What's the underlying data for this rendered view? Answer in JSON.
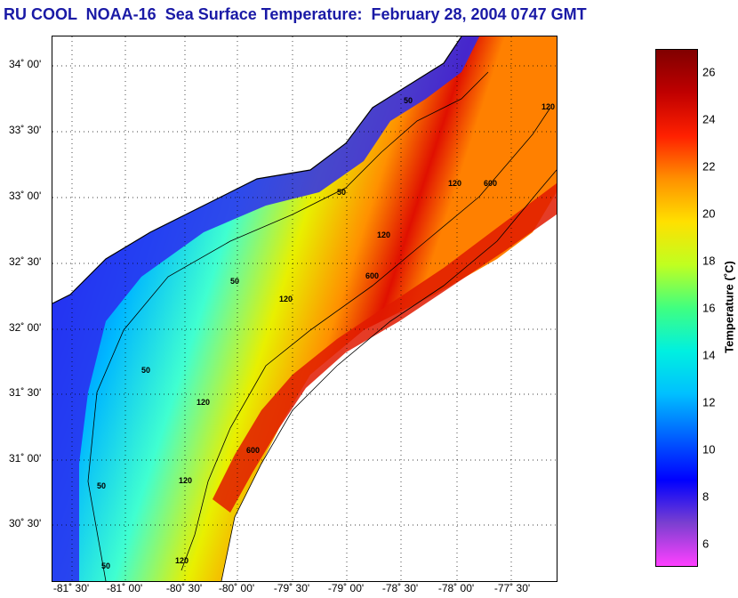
{
  "title": "RU COOL  NOAA-16  Sea Surface Temperature:  February 28, 2004 0747 GMT",
  "map": {
    "latitude_labels": [
      "34˚ 00'",
      "33˚ 30'",
      "33˚ 00'",
      "32˚ 30'",
      "32˚ 00'",
      "31˚ 30'",
      "31˚ 00'",
      "30˚ 30'"
    ],
    "longitude_labels": [
      "-81˚ 30'",
      "-81˚ 00'",
      "-80˚ 30'",
      "-80˚ 00'",
      "-79˚ 30'",
      "-79˚ 00'",
      "-78˚ 30'",
      "-78˚ 00'",
      "-77˚ 30'"
    ],
    "grid": "dotted",
    "contour_labels": [
      "50",
      "50",
      "50",
      "50",
      "50",
      "50",
      "120",
      "120",
      "120",
      "120",
      "120",
      "120",
      "120",
      "600",
      "600",
      "600"
    ],
    "colors": {
      "land": "#ffffff",
      "coast": "#000000",
      "cold": "#1a1aff",
      "cool": "#00c8ff",
      "mild": "#f0f000",
      "warm": "#ff8c00",
      "hot": "#e01000"
    }
  },
  "colorbar": {
    "label": "Temperature (˚C)",
    "ticks": [
      "26",
      "24",
      "22",
      "20",
      "18",
      "16",
      "14",
      "12",
      "10",
      "8",
      "6"
    ],
    "tick_values": [
      26,
      24,
      22,
      20,
      18,
      16,
      14,
      12,
      10,
      8,
      6
    ],
    "range": [
      5,
      27
    ],
    "colors": [
      "#ff40ff",
      "#7a3fd0",
      "#0000ff",
      "#0060ff",
      "#00c0ff",
      "#00f0e0",
      "#40ff80",
      "#c0ff20",
      "#ffe000",
      "#ff9000",
      "#ff2000",
      "#c00000",
      "#800000"
    ]
  }
}
